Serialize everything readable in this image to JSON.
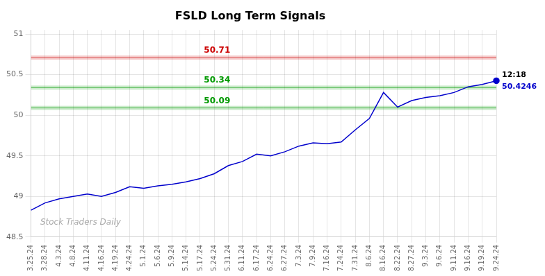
{
  "chart_data": {
    "type": "line",
    "title": "FSLD Long Term Signals",
    "categories": [
      "3.25.24",
      "3.28.24",
      "4.3.24",
      "4.8.24",
      "4.11.24",
      "4.16.24",
      "4.19.24",
      "4.24.24",
      "5.1.24",
      "5.6.24",
      "5.9.24",
      "5.14.24",
      "5.17.24",
      "5.24.24",
      "5.31.24",
      "6.11.24",
      "6.17.24",
      "6.24.24",
      "6.27.24",
      "7.3.24",
      "7.9.24",
      "7.16.24",
      "7.24.24",
      "7.31.24",
      "8.6.24",
      "8.16.24",
      "8.22.24",
      "8.27.24",
      "9.3.24",
      "9.6.24",
      "9.11.24",
      "9.16.24",
      "9.19.24",
      "9.24.24"
    ],
    "values": [
      48.83,
      48.92,
      48.97,
      49.0,
      49.03,
      49.0,
      49.05,
      49.12,
      49.1,
      49.13,
      49.15,
      49.18,
      49.22,
      49.28,
      49.38,
      49.43,
      49.52,
      49.5,
      49.55,
      49.62,
      49.66,
      49.65,
      49.67,
      49.82,
      49.96,
      50.28,
      50.1,
      50.18,
      50.22,
      50.24,
      50.28,
      50.35,
      50.38,
      50.4246
    ],
    "color": "#0000cc",
    "ylim": [
      48.5,
      51.05
    ],
    "yticks": [
      48.5,
      49,
      49.5,
      50,
      50.5,
      51
    ],
    "grid": true,
    "reference_lines": [
      {
        "value": 50.71,
        "label": "50.71",
        "color": "#cc0000"
      },
      {
        "value": 50.34,
        "label": "50.34",
        "color": "#009900"
      },
      {
        "value": 50.09,
        "label": "50.09",
        "color": "#009900"
      }
    ],
    "annotations": [
      "12:18",
      "50.4246"
    ],
    "watermark": "Stock Traders Daily"
  }
}
